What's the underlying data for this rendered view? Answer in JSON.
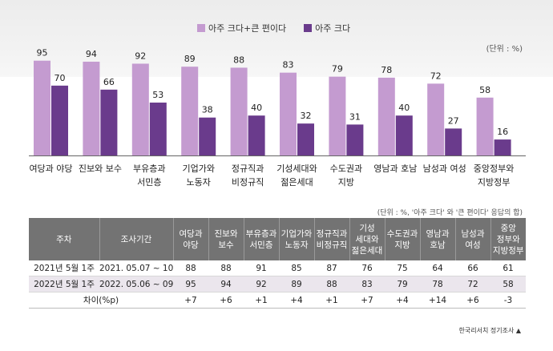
{
  "chart_data": {
    "type": "bar",
    "categories": [
      [
        "여당과 야당"
      ],
      [
        "진보와 보수"
      ],
      [
        "부유층과",
        "서민층"
      ],
      [
        "기업가와",
        "노동자"
      ],
      [
        "정규직과",
        "비정규직"
      ],
      [
        "기성세대와",
        "젊은세대"
      ],
      [
        "수도권과",
        "지방"
      ],
      [
        "영남과 호남"
      ],
      [
        "남성과 여성"
      ],
      [
        "중앙정부와",
        "지방정부"
      ]
    ],
    "series": [
      {
        "name": "아주 크다+큰 편이다",
        "color": "#c49bd0",
        "values": [
          95,
          94,
          92,
          89,
          88,
          83,
          79,
          78,
          72,
          58
        ]
      },
      {
        "name": "아주 크다",
        "color": "#6a3b8c",
        "values": [
          70,
          66,
          53,
          38,
          40,
          32,
          31,
          40,
          27,
          16
        ]
      }
    ],
    "ylim": [
      0,
      100
    ],
    "title": "",
    "xlabel": "",
    "ylabel": ""
  },
  "unit_chart": "(단위 : %)",
  "unit_table": "(단위 : %, '아주 크다' 와 '큰 편이다' 응답의 합)",
  "table": {
    "headers": {
      "week": "주차",
      "period": "조사기간",
      "cols": [
        [
          "여당과",
          "야당"
        ],
        [
          "진보와",
          "보수"
        ],
        [
          "부유층과",
          "서민층"
        ],
        [
          "기업가와",
          "노동자"
        ],
        [
          "정규직과",
          "비정규직"
        ],
        [
          "기성",
          "세대와",
          "젊은세대"
        ],
        [
          "수도권과",
          "지방"
        ],
        [
          "영남과",
          "호남"
        ],
        [
          "남성과",
          "여성"
        ],
        [
          "중앙",
          "정부와",
          "지방정부"
        ]
      ]
    },
    "rows": [
      {
        "week": "2021년 5월 1주",
        "period": "2021. 05.07 ~ 10",
        "values": [
          "88",
          "88",
          "91",
          "85",
          "87",
          "76",
          "75",
          "64",
          "66",
          "61"
        ]
      },
      {
        "week": "2022년 5월 1주",
        "period": "2022. 05.06 ~ 09",
        "values": [
          "95",
          "94",
          "92",
          "89",
          "88",
          "83",
          "79",
          "78",
          "72",
          "58"
        ]
      }
    ],
    "diff": {
      "label": "차이(%p)",
      "values": [
        "+7",
        "+6",
        "+1",
        "+4",
        "+1",
        "+7",
        "+4",
        "+14",
        "+6",
        "-3"
      ]
    }
  },
  "source": "한국리서치 정기조사 ▲"
}
